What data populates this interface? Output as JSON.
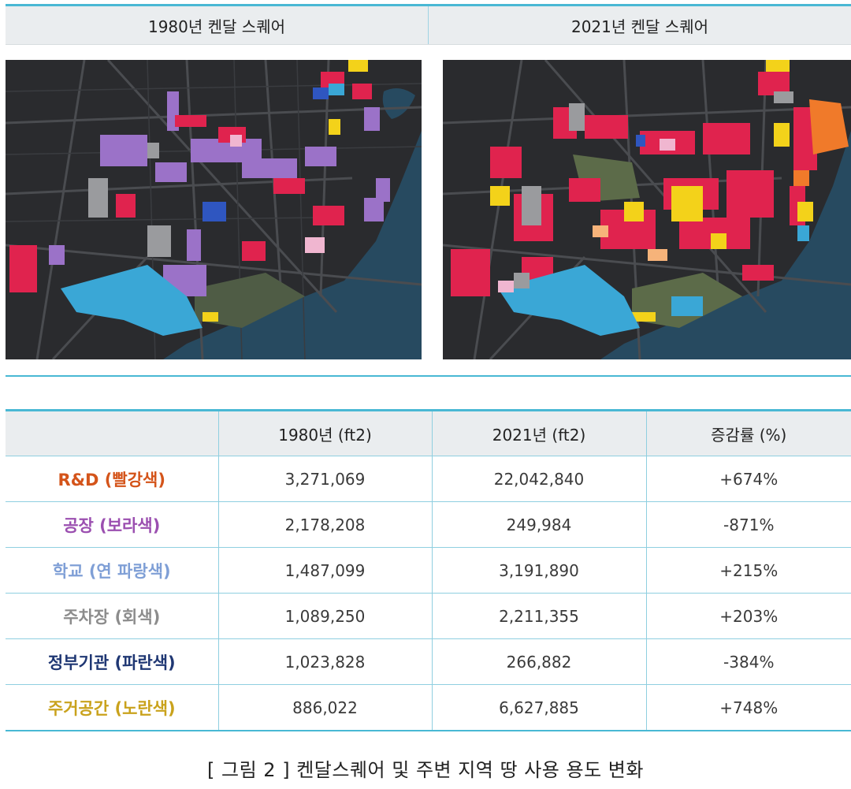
{
  "maps": {
    "left_title": "1980년 켄달 스퀘어",
    "right_title": "2021년 켄달 스퀘어"
  },
  "table": {
    "headers": [
      "",
      "1980년 (ft2)",
      "2021년 (ft2)",
      "증감률 (%)"
    ],
    "rows": [
      {
        "category": "R&D (빨강색)",
        "color": "#d4541a",
        "y1980": "3,271,069",
        "y2021": "22,042,840",
        "change": "+674%"
      },
      {
        "category": "공장 (보라색)",
        "color": "#9b4fb0",
        "y1980": "2,178,208",
        "y2021": "249,984",
        "change": "-871%"
      },
      {
        "category": "학교 (연 파랑색)",
        "color": "#7f9fd6",
        "y1980": "1,487,099",
        "y2021": "3,191,890",
        "change": "+215%"
      },
      {
        "category": "주차장 (회색)",
        "color": "#8c8c8c",
        "y1980": "1,089,250",
        "y2021": "2,211,355",
        "change": "+203%"
      },
      {
        "category": "정부기관 (파란색)",
        "color": "#1f3773",
        "y1980": "1,023,828",
        "y2021": "266,882",
        "change": "-384%"
      },
      {
        "category": "주거공간 (노란색)",
        "color": "#c9a21c",
        "y1980": "886,022",
        "y2021": "6,627,885",
        "change": "+748%"
      }
    ]
  },
  "caption": "[ 그림 2 ] 켄달스퀘어 및 주변 지역 땅 사용 용도 변화"
}
